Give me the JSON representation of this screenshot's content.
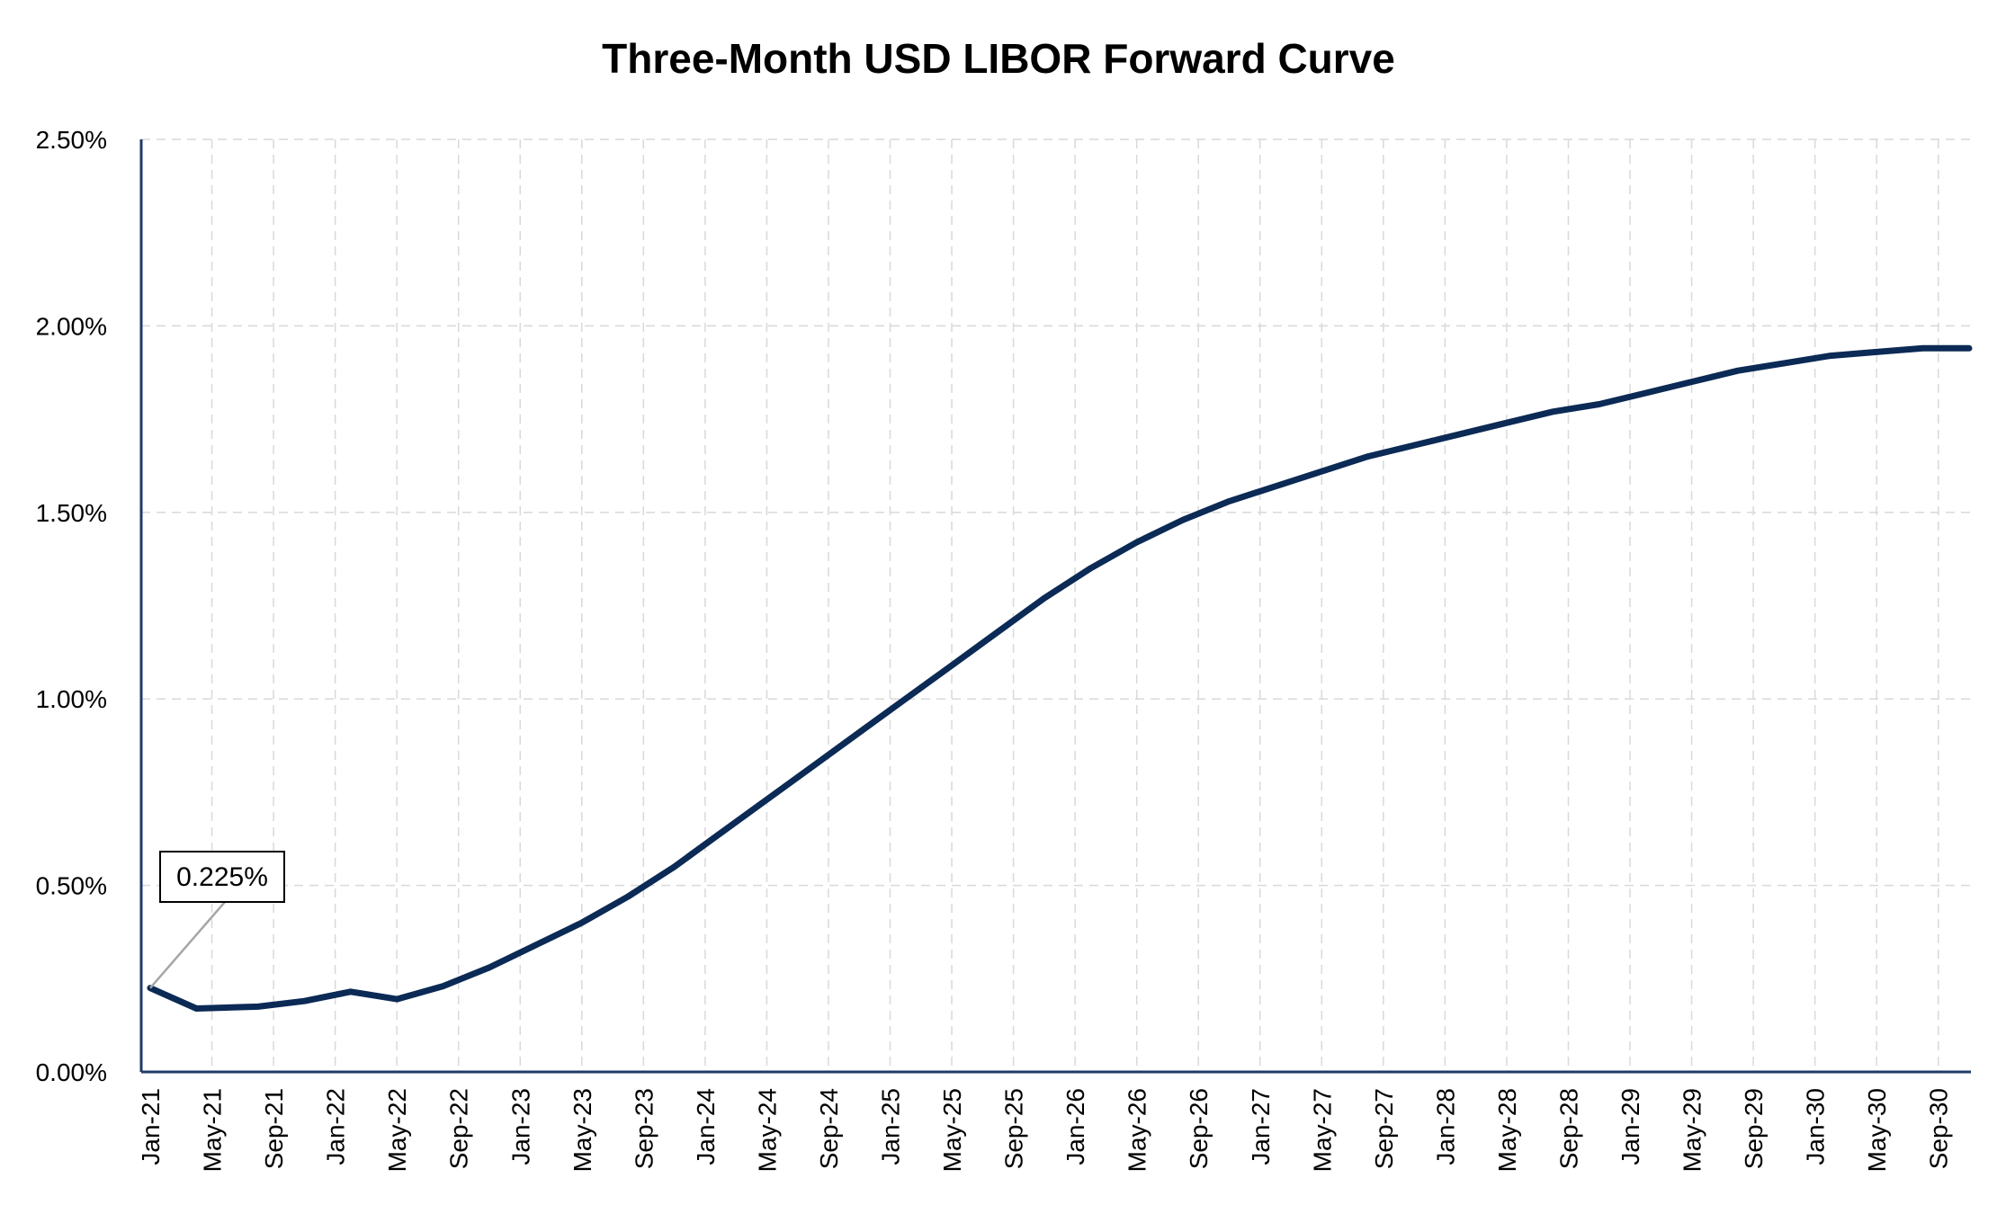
{
  "chart_data": {
    "type": "line",
    "title": "Three-Month USD LIBOR Forward Curve",
    "xlabel": "",
    "ylabel": "",
    "ylim": [
      0,
      0.025
    ],
    "y_tick_values": [
      0,
      0.005,
      0.01,
      0.015,
      0.02,
      0.025
    ],
    "y_tick_labels": [
      "0.00%",
      "0.50%",
      "1.00%",
      "1.50%",
      "2.00%",
      "2.50%"
    ],
    "x_range": [
      "Jan-21",
      "Nov-30"
    ],
    "x_tick_labels": [
      "Jan-21",
      "May-21",
      "Sep-21",
      "Jan-22",
      "May-22",
      "Sep-22",
      "Jan-23",
      "May-23",
      "Sep-23",
      "Jan-24",
      "May-24",
      "Sep-24",
      "Jan-25",
      "May-25",
      "Sep-25",
      "Jan-26",
      "May-26",
      "Sep-26",
      "Jan-27",
      "May-27",
      "Sep-27",
      "Jan-28",
      "May-28",
      "Sep-28",
      "Jan-29",
      "May-29",
      "Sep-29",
      "Jan-30",
      "May-30",
      "Sep-30"
    ],
    "grid": true,
    "legend": "none",
    "series": [
      {
        "color": "#0b2a55",
        "x": [
          "Jan-21",
          "Apr-21",
          "Aug-21",
          "Nov-21",
          "Feb-22",
          "May-22",
          "Aug-22",
          "Nov-22",
          "Feb-23",
          "May-23",
          "Aug-23",
          "Nov-23",
          "Feb-24",
          "May-24",
          "Aug-24",
          "Nov-24",
          "Feb-25",
          "May-25",
          "Aug-25",
          "Nov-25",
          "Feb-26",
          "May-26",
          "Aug-26",
          "Nov-26",
          "Feb-27",
          "May-27",
          "Aug-27",
          "Nov-27",
          "Feb-28",
          "May-28",
          "Aug-28",
          "Nov-28",
          "Feb-29",
          "May-29",
          "Aug-29",
          "Nov-29",
          "Feb-30",
          "May-30",
          "Aug-30",
          "Nov-30"
        ],
        "values": [
          0.00225,
          0.0017,
          0.00175,
          0.0019,
          0.00215,
          0.00195,
          0.0023,
          0.0028,
          0.0034,
          0.004,
          0.0047,
          0.0055,
          0.0064,
          0.0073,
          0.0082,
          0.0091,
          0.01,
          0.0109,
          0.0118,
          0.0127,
          0.0135,
          0.0142,
          0.0148,
          0.0153,
          0.0157,
          0.0161,
          0.0165,
          0.0168,
          0.0171,
          0.0174,
          0.0177,
          0.0179,
          0.0182,
          0.0185,
          0.0188,
          0.019,
          0.0192,
          0.0193,
          0.0194,
          0.0194
        ]
      }
    ],
    "annotations": [
      {
        "text": "0.225%",
        "x": "Jan-21",
        "y": 0.00225
      }
    ]
  }
}
